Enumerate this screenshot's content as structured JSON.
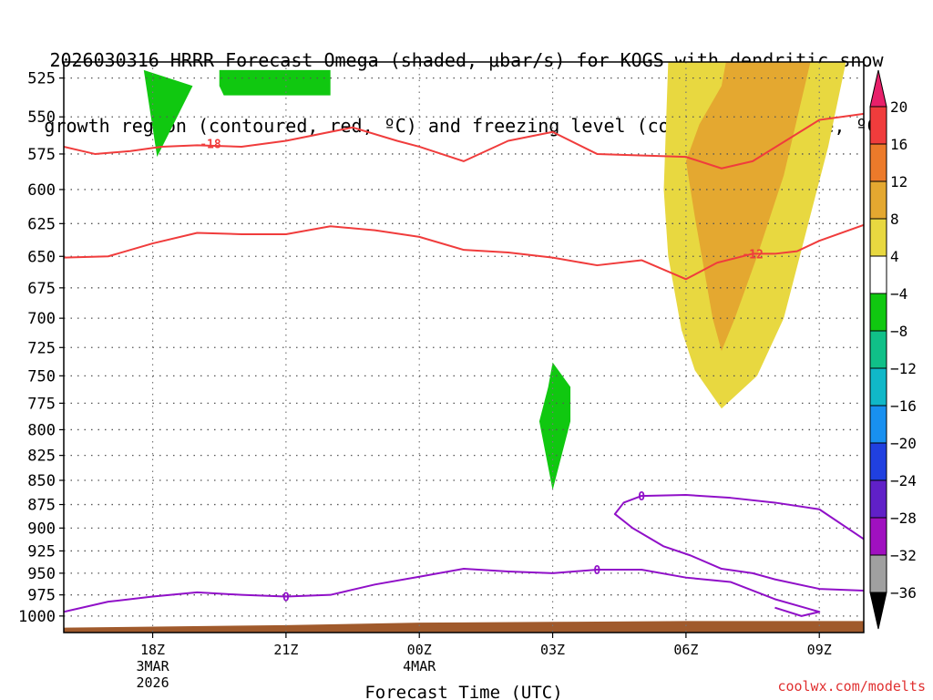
{
  "title_line1": "2026030316 HRRR Forecast Omega (shaded, μbar/s) for KOGS with dendritic snow",
  "title_line2": "growth region (contoured, red, ºC) and freezing level (contoured, purple, ºC)",
  "watermark": "coolwx.com/modelts",
  "chart_data": {
    "type": "heatmap",
    "xlabel": "Forecast Time (UTC)",
    "ylabel": "",
    "x_ticks": [
      {
        "label": "18Z",
        "sub": [
          "3MAR",
          "2026"
        ],
        "hours": 2
      },
      {
        "label": "21Z",
        "sub": [],
        "hours": 5
      },
      {
        "label": "00Z",
        "sub": [
          "4MAR"
        ],
        "hours": 8
      },
      {
        "label": "03Z",
        "sub": [],
        "hours": 11
      },
      {
        "label": "06Z",
        "sub": [],
        "hours": 14
      },
      {
        "label": "09Z",
        "sub": [],
        "hours": 17
      }
    ],
    "xlim": [
      0,
      18
    ],
    "y_ticks": [
      525,
      550,
      575,
      600,
      625,
      650,
      675,
      700,
      725,
      750,
      775,
      800,
      825,
      850,
      875,
      900,
      925,
      950,
      975,
      1000
    ],
    "ylim": [
      1020,
      515
    ],
    "y_scale": "log-pressure",
    "grid": true,
    "colorbar": {
      "levels": [
        "20",
        "16",
        "12",
        "8",
        "4",
        "−4",
        "−8",
        "−12",
        "−16",
        "−20",
        "−24",
        "−28",
        "−32",
        "−36"
      ],
      "colors": [
        "#e8206a",
        "#f03c3c",
        "#ec7a2a",
        "#e4a830",
        "#e8d840",
        "#ffffff",
        "#10c810",
        "#10c088",
        "#10b8c8",
        "#1890f0",
        "#2040e0",
        "#6020c8",
        "#a010c0",
        "#a0a0a0",
        "#000000"
      ]
    },
    "omega_regions": [
      {
        "value": "-4 to -8",
        "color": "#10c810",
        "points": [
          [
            1.8,
            520
          ],
          [
            2.9,
            530
          ],
          [
            2.1,
            577
          ]
        ]
      },
      {
        "value": "-4 to -8",
        "color": "#10c810",
        "points": [
          [
            3.5,
            520
          ],
          [
            6.0,
            520
          ],
          [
            6.0,
            536
          ],
          [
            3.6,
            536
          ],
          [
            3.5,
            530
          ]
        ]
      },
      {
        "value": "-4 to -8",
        "color": "#10c810",
        "points": [
          [
            11.0,
            738
          ],
          [
            11.4,
            760
          ],
          [
            11.4,
            792
          ],
          [
            11.0,
            860
          ],
          [
            10.7,
            792
          ],
          [
            10.9,
            760
          ]
        ]
      },
      {
        "value": "4 to 8",
        "color": "#e8d840",
        "points": [
          [
            13.6,
            515
          ],
          [
            17.6,
            515
          ],
          [
            17.2,
            570
          ],
          [
            16.2,
            700
          ],
          [
            15.6,
            750
          ],
          [
            14.8,
            780
          ],
          [
            14.2,
            745
          ],
          [
            13.9,
            710
          ],
          [
            13.6,
            650
          ],
          [
            13.5,
            600
          ]
        ]
      },
      {
        "value": "8 to 12",
        "color": "#e4a830",
        "points": [
          [
            14.9,
            515
          ],
          [
            16.8,
            515
          ],
          [
            16.2,
            590
          ],
          [
            15.6,
            650
          ],
          [
            15.1,
            700
          ],
          [
            14.8,
            728
          ],
          [
            14.6,
            700
          ],
          [
            14.2,
            620
          ],
          [
            14.0,
            580
          ],
          [
            14.3,
            555
          ],
          [
            14.8,
            530
          ]
        ]
      }
    ],
    "dgz_contours": [
      {
        "label": "-18",
        "label_at": [
          3.3,
          568
        ],
        "points": [
          [
            0,
            570
          ],
          [
            0.7,
            575
          ],
          [
            1.5,
            573
          ],
          [
            2.2,
            570
          ],
          [
            3.0,
            569
          ],
          [
            4.0,
            570
          ],
          [
            5.0,
            566
          ],
          [
            6.5,
            557
          ],
          [
            7.5,
            566
          ],
          [
            8.0,
            570
          ],
          [
            9.0,
            580
          ],
          [
            10.0,
            566
          ],
          [
            11.0,
            560
          ],
          [
            12.0,
            575
          ],
          [
            14.0,
            577
          ],
          [
            14.8,
            585
          ],
          [
            15.5,
            580
          ],
          [
            17.0,
            552
          ],
          [
            18.0,
            548
          ]
        ]
      },
      {
        "label": "-12",
        "label_at": [
          15.5,
          648
        ],
        "points": [
          [
            0,
            651
          ],
          [
            1.0,
            650
          ],
          [
            2.0,
            640
          ],
          [
            3.0,
            632
          ],
          [
            4.0,
            633
          ],
          [
            5.0,
            633
          ],
          [
            6.0,
            627
          ],
          [
            7.0,
            630
          ],
          [
            8.0,
            635
          ],
          [
            9.0,
            645
          ],
          [
            10.0,
            647
          ],
          [
            11.0,
            651
          ],
          [
            12.0,
            657
          ],
          [
            13.0,
            653
          ],
          [
            14.0,
            668
          ],
          [
            14.7,
            655
          ],
          [
            15.5,
            648
          ],
          [
            16.0,
            648
          ],
          [
            16.5,
            646
          ],
          [
            17.0,
            638
          ],
          [
            18.0,
            626
          ]
        ]
      }
    ],
    "freezing_contours": [
      {
        "label": "0",
        "label_at": [
          5.0,
          977
        ],
        "points": [
          [
            0,
            995
          ],
          [
            1.0,
            983
          ],
          [
            2.0,
            977
          ],
          [
            3.0,
            972
          ],
          [
            4.0,
            975
          ],
          [
            5.0,
            977
          ],
          [
            6.0,
            975
          ],
          [
            7.0,
            963
          ],
          [
            8.0,
            954
          ],
          [
            9.0,
            945
          ],
          [
            10.0,
            948
          ],
          [
            11.0,
            950
          ],
          [
            12.0,
            946
          ],
          [
            13.0,
            946
          ],
          [
            14.0,
            955
          ],
          [
            15.0,
            960
          ],
          [
            16.0,
            980
          ],
          [
            17.0,
            995
          ],
          [
            16.6,
            1000
          ],
          [
            16.0,
            990
          ]
        ]
      },
      {
        "label": "0",
        "label_at": [
          12.0,
          946
        ],
        "points": [
          [
            12.0,
            946
          ],
          [
            12.2,
            946
          ]
        ]
      },
      {
        "label": "0",
        "label_at": [
          13.0,
          866
        ],
        "points": [
          [
            18.0,
            912
          ],
          [
            17.0,
            880
          ],
          [
            16.0,
            873
          ],
          [
            15.0,
            868
          ],
          [
            14.0,
            865
          ],
          [
            13.0,
            866
          ],
          [
            12.6,
            873
          ],
          [
            12.4,
            885
          ],
          [
            12.8,
            900
          ],
          [
            13.5,
            920
          ],
          [
            14.1,
            930
          ],
          [
            14.8,
            945
          ],
          [
            15.5,
            950
          ],
          [
            16.0,
            957
          ],
          [
            17.0,
            968
          ],
          [
            18.0,
            970
          ]
        ]
      }
    ],
    "terrain_pressure": [
      [
        0,
        1014
      ],
      [
        5,
        1011
      ],
      [
        8,
        1008
      ],
      [
        11,
        1007
      ],
      [
        14,
        1006
      ],
      [
        18,
        1006
      ]
    ]
  }
}
